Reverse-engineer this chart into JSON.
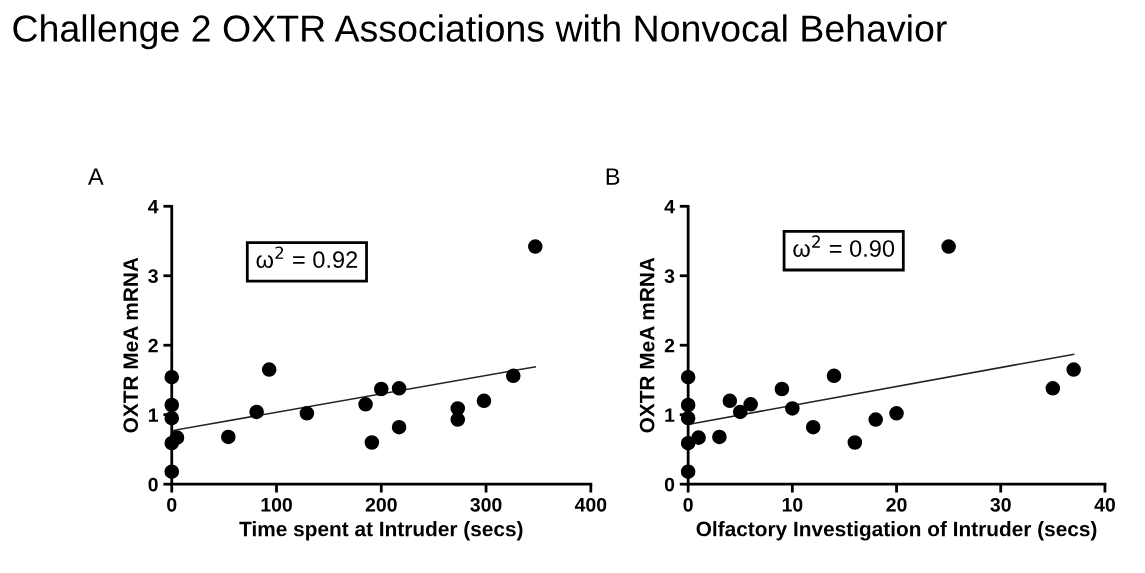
{
  "chart_data": [
    {
      "type": "scatter",
      "title": "Challenge 2 OXTR Associations with Nonvocal Behavior",
      "xlabel": "Time spent at Intruder (secs)",
      "ylabel": "OXTR MeA mRNA",
      "annotations": [
        "A",
        "ω$^{2}$ = 0.92"
      ],
      "xlim": [
        0,
        400
      ],
      "xticks": [
        0,
        100,
        200,
        300,
        400
      ],
      "ylim": [
        0,
        4
      ],
      "yticks": [
        0,
        1,
        2,
        3,
        4
      ],
      "grid": false,
      "legend": false,
      "series": [
        {
          "marker": "circle",
          "color": "#000000",
          "x": [
            0,
            0,
            0,
            0,
            0,
            5,
            54,
            81,
            93,
            129,
            185,
            191,
            200,
            217,
            217,
            273,
            273,
            298,
            326,
            347
          ],
          "values": [
            1.54,
            1.14,
            0.95,
            0.59,
            0.18,
            0.67,
            0.68,
            1.04,
            1.65,
            1.02,
            1.15,
            0.6,
            1.37,
            1.38,
            0.82,
            1.09,
            0.93,
            1.2,
            1.56,
            3.42
          ]
        },
        {
          "type": "line",
          "marker": "none",
          "color": "#222222",
          "x": [
            0,
            347
          ],
          "values": [
            0.77,
            1.69
          ]
        }
      ]
    },
    {
      "type": "scatter",
      "xlabel": "Olfactory Investigation of Intruder (secs)",
      "ylabel": "OXTR MeA mRNA",
      "annotations": [
        "B",
        "ω$^{2}$ = 0.90"
      ],
      "xlim": [
        0,
        40
      ],
      "xticks": [
        0,
        10,
        20,
        30,
        40
      ],
      "ylim": [
        0,
        4
      ],
      "yticks": [
        0,
        1,
        2,
        3,
        4
      ],
      "grid": false,
      "legend": false,
      "series": [
        {
          "marker": "circle",
          "color": "#000000",
          "x": [
            0,
            0,
            0,
            0,
            0,
            1,
            3,
            4,
            5,
            6,
            9,
            10,
            12,
            14,
            16,
            18,
            20,
            25,
            35,
            37
          ],
          "values": [
            1.54,
            1.14,
            0.95,
            0.59,
            0.18,
            0.67,
            0.68,
            1.2,
            1.04,
            1.15,
            1.37,
            1.09,
            0.82,
            1.56,
            0.6,
            0.93,
            1.02,
            3.42,
            1.38,
            1.65
          ]
        },
        {
          "type": "line",
          "marker": "none",
          "color": "#222222",
          "x": [
            0,
            37
          ],
          "values": [
            0.86,
            1.87
          ]
        }
      ]
    }
  ]
}
